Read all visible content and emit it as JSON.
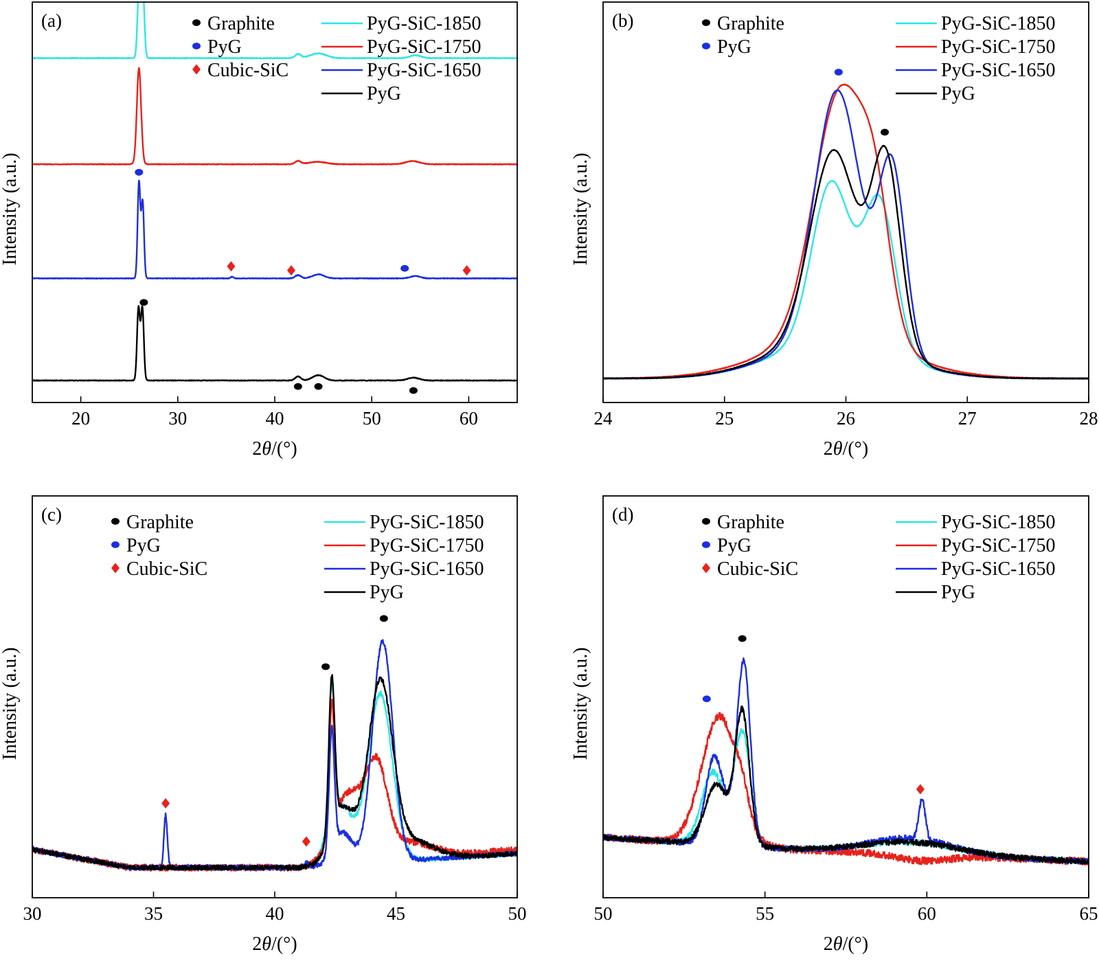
{
  "colors": {
    "PyG-SiC-1850": "#2ee6e6",
    "PyG-SiC-1750": "#e8221c",
    "PyG-SiC-1650": "#1c2ee0",
    "PyG": "#000000",
    "Graphite": "#000000",
    "PyG_marker": "#1c2ee0",
    "Cubic-SiC": "#e8221c"
  },
  "chart_data": [
    {
      "id": "a",
      "type": "line",
      "label": "(a)",
      "xlabel_pre": "2",
      "xlabel_theta": "θ",
      "xlabel_post": "/(°)",
      "ylabel": "Intensity (a.u.)",
      "xlim": [
        15,
        65
      ],
      "xticks": [
        20,
        30,
        40,
        50,
        60
      ],
      "layout": "stacked",
      "legend_markers": [
        "Graphite",
        "PyG",
        "Cubic-SiC"
      ],
      "legend_lines": [
        "PyG-SiC-1850",
        "PyG-SiC-1750",
        "PyG-SiC-1650",
        "PyG"
      ],
      "series": [
        {
          "name": "PyG-SiC-1850",
          "baseline": 0.86,
          "peaks": [
            [
              26.0,
              0.17,
              0.16
            ],
            [
              26.4,
              0.17,
              0.16
            ],
            [
              42.4,
              0.01,
              0.3
            ],
            [
              44.5,
              0.012,
              0.8
            ],
            [
              54.5,
              0.007,
              0.6
            ]
          ]
        },
        {
          "name": "PyG-SiC-1750",
          "baseline": 0.595,
          "peaks": [
            [
              26.0,
              0.24,
              0.22
            ],
            [
              42.4,
              0.008,
              0.3
            ],
            [
              44.4,
              0.006,
              0.9
            ],
            [
              54.2,
              0.008,
              0.7
            ]
          ]
        },
        {
          "name": "PyG-SiC-1650",
          "baseline": 0.31,
          "peaks": [
            [
              26.0,
              0.24,
              0.14
            ],
            [
              26.38,
              0.19,
              0.14
            ],
            [
              35.6,
              0.004,
              0.15
            ],
            [
              42.4,
              0.008,
              0.3
            ],
            [
              44.5,
              0.01,
              0.6
            ],
            [
              54.5,
              0.006,
              0.5
            ]
          ]
        },
        {
          "name": "PyG",
          "baseline": 0.055,
          "peaks": [
            [
              25.95,
              0.18,
              0.15
            ],
            [
              26.35,
              0.18,
              0.15
            ],
            [
              42.4,
              0.01,
              0.3
            ],
            [
              44.5,
              0.013,
              0.6
            ],
            [
              54.3,
              0.007,
              0.6
            ]
          ]
        }
      ],
      "markers": [
        {
          "type": "PyG",
          "x": 26.0,
          "y": 0.575
        },
        {
          "type": "Graphite",
          "x": 26.5,
          "y": 0.25
        },
        {
          "type": "Cubic-SiC",
          "x": 35.5,
          "y": 0.34
        },
        {
          "type": "Cubic-SiC",
          "x": 41.7,
          "y": 0.33
        },
        {
          "type": "PyG",
          "x": 53.4,
          "y": 0.335
        },
        {
          "type": "Cubic-SiC",
          "x": 59.8,
          "y": 0.33
        },
        {
          "type": "Graphite",
          "x": 42.4,
          "y": 0.04
        },
        {
          "type": "Graphite",
          "x": 44.5,
          "y": 0.04
        },
        {
          "type": "Graphite",
          "x": 54.3,
          "y": 0.03
        }
      ]
    },
    {
      "id": "b",
      "type": "line",
      "label": "(b)",
      "xlabel_pre": "2",
      "xlabel_theta": "θ",
      "xlabel_post": "/(°)",
      "ylabel": "Intensity (a.u.)",
      "xlim": [
        24,
        28
      ],
      "xticks": [
        24,
        25,
        26,
        27,
        28
      ],
      "legend_markers": [
        "Graphite",
        "PyG"
      ],
      "legend_lines": [
        "PyG-SiC-1850",
        "PyG-SiC-1750",
        "PyG-SiC-1650",
        "PyG"
      ],
      "series": [
        {
          "name": "PyG-SiC-1850",
          "baseline": 0.06,
          "peaks": [
            [
              25.88,
              0.4,
              0.16
            ],
            [
              26.28,
              0.37,
              0.13
            ],
            [
              25.9,
              0.09,
              0.5
            ]
          ]
        },
        {
          "name": "PyG-SiC-1750",
          "baseline": 0.06,
          "peaks": [
            [
              25.96,
              0.62,
              0.22
            ],
            [
              26.25,
              0.22,
              0.12
            ],
            [
              25.9,
              0.1,
              0.55
            ]
          ]
        },
        {
          "name": "PyG-SiC-1650",
          "baseline": 0.06,
          "peaks": [
            [
              25.93,
              0.63,
              0.19
            ],
            [
              26.38,
              0.46,
              0.11
            ],
            [
              25.9,
              0.09,
              0.5
            ]
          ]
        },
        {
          "name": "PyG",
          "baseline": 0.06,
          "peaks": [
            [
              25.9,
              0.47,
              0.19
            ],
            [
              26.33,
              0.47,
              0.12
            ],
            [
              25.9,
              0.1,
              0.5
            ]
          ]
        }
      ],
      "markers": [
        {
          "type": "PyG",
          "x": 25.94,
          "y": 0.825
        },
        {
          "type": "Graphite",
          "x": 26.32,
          "y": 0.675
        }
      ]
    },
    {
      "id": "c",
      "type": "line",
      "label": "(c)",
      "xlabel_pre": "2",
      "xlabel_theta": "θ",
      "xlabel_post": "/(°)",
      "ylabel": "Intensity (a.u.)",
      "xlim": [
        30,
        50
      ],
      "xticks": [
        30,
        35,
        40,
        45,
        50
      ],
      "legend_markers": [
        "Graphite",
        "PyG",
        "Cubic-SiC"
      ],
      "legend_lines": [
        "PyG-SiC-1850",
        "PyG-SiC-1750",
        "PyG-SiC-1650",
        "PyG"
      ],
      "series": [
        {
          "name": "PyG-SiC-1850",
          "noise": 0.006,
          "baseline": [
            [
              30,
              0.12
            ],
            [
              34,
              0.075
            ],
            [
              41,
              0.075
            ],
            [
              50,
              0.11
            ]
          ],
          "peaks": [
            [
              42.35,
              0.34,
              0.12
            ],
            [
              42.7,
              0.15,
              0.5
            ],
            [
              44.35,
              0.42,
              0.5
            ]
          ]
        },
        {
          "name": "PyG-SiC-1750",
          "noise": 0.008,
          "baseline": [
            [
              30,
              0.12
            ],
            [
              34,
              0.075
            ],
            [
              41,
              0.075
            ],
            [
              50,
              0.12
            ]
          ],
          "peaks": [
            [
              42.35,
              0.31,
              0.12
            ],
            [
              43.0,
              0.17,
              0.6
            ],
            [
              44.2,
              0.22,
              0.45
            ],
            [
              45.5,
              0.04,
              1.0
            ]
          ]
        },
        {
          "name": "PyG-SiC-1650",
          "noise": 0.006,
          "baseline": [
            [
              30,
              0.12
            ],
            [
              34,
              0.075
            ],
            [
              41,
              0.075
            ],
            [
              50,
              0.11
            ]
          ],
          "peaks": [
            [
              35.5,
              0.13,
              0.07
            ],
            [
              41.3,
              0.01,
              0.1
            ],
            [
              42.35,
              0.3,
              0.11
            ],
            [
              42.8,
              0.08,
              0.4
            ],
            [
              44.45,
              0.55,
              0.42
            ]
          ]
        },
        {
          "name": "PyG",
          "noise": 0.006,
          "baseline": [
            [
              30,
              0.12
            ],
            [
              34,
              0.075
            ],
            [
              41,
              0.075
            ],
            [
              50,
              0.11
            ]
          ],
          "peaks": [
            [
              42.35,
              0.38,
              0.12
            ],
            [
              42.8,
              0.14,
              0.5
            ],
            [
              44.35,
              0.43,
              0.5
            ],
            [
              45.5,
              0.05,
              1.0
            ]
          ]
        }
      ],
      "markers": [
        {
          "type": "Graphite",
          "x": 42.1,
          "y": 0.575
        },
        {
          "type": "Graphite",
          "x": 44.5,
          "y": 0.695
        },
        {
          "type": "Cubic-SiC",
          "x": 35.5,
          "y": 0.235
        },
        {
          "type": "Cubic-SiC",
          "x": 41.3,
          "y": 0.14
        }
      ]
    },
    {
      "id": "d",
      "type": "line",
      "label": "(d)",
      "xlabel_pre": "2",
      "xlabel_theta": "θ",
      "xlabel_post": "/(°)",
      "ylabel": "Intensity (a.u.)",
      "xlim": [
        50,
        65
      ],
      "xticks": [
        50,
        55,
        60,
        65
      ],
      "legend_markers": [
        "Graphite",
        "PyG",
        "Cubic-SiC"
      ],
      "legend_lines": [
        "PyG-SiC-1850",
        "PyG-SiC-1750",
        "PyG-SiC-1650",
        "PyG"
      ],
      "series": [
        {
          "name": "PyG-SiC-1850",
          "noise": 0.007,
          "baseline": [
            [
              50,
              0.15
            ],
            [
              56,
              0.12
            ],
            [
              65,
              0.09
            ]
          ],
          "peaks": [
            [
              53.4,
              0.18,
              0.35
            ],
            [
              54.3,
              0.28,
              0.25
            ],
            [
              59.5,
              0.03,
              1.5
            ]
          ]
        },
        {
          "name": "PyG-SiC-1750",
          "noise": 0.009,
          "baseline": [
            [
              50,
              0.15
            ],
            [
              56,
              0.12
            ],
            [
              65,
              0.09
            ]
          ],
          "peaks": [
            [
              53.6,
              0.32,
              0.55
            ],
            [
              54.3,
              0.05,
              0.2
            ],
            [
              59.8,
              -0.015,
              0.8
            ]
          ]
        },
        {
          "name": "PyG-SiC-1650",
          "noise": 0.007,
          "baseline": [
            [
              50,
              0.15
            ],
            [
              56,
              0.12
            ],
            [
              65,
              0.09
            ]
          ],
          "peaks": [
            [
              53.4,
              0.18,
              0.25
            ],
            [
              54.35,
              0.42,
              0.2
            ],
            [
              53.9,
              0.08,
              0.4
            ],
            [
              59.85,
              0.1,
              0.1
            ],
            [
              59.5,
              0.04,
              1.3
            ]
          ]
        },
        {
          "name": "PyG",
          "noise": 0.007,
          "baseline": [
            [
              50,
              0.15
            ],
            [
              56,
              0.12
            ],
            [
              65,
              0.09
            ]
          ],
          "peaks": [
            [
              53.5,
              0.15,
              0.35
            ],
            [
              54.3,
              0.33,
              0.22
            ],
            [
              59.5,
              0.03,
              1.5
            ]
          ]
        }
      ],
      "markers": [
        {
          "type": "Graphite",
          "x": 54.3,
          "y": 0.645
        },
        {
          "type": "PyG",
          "x": 53.2,
          "y": 0.495
        },
        {
          "type": "Cubic-SiC",
          "x": 59.8,
          "y": 0.27
        }
      ]
    }
  ]
}
